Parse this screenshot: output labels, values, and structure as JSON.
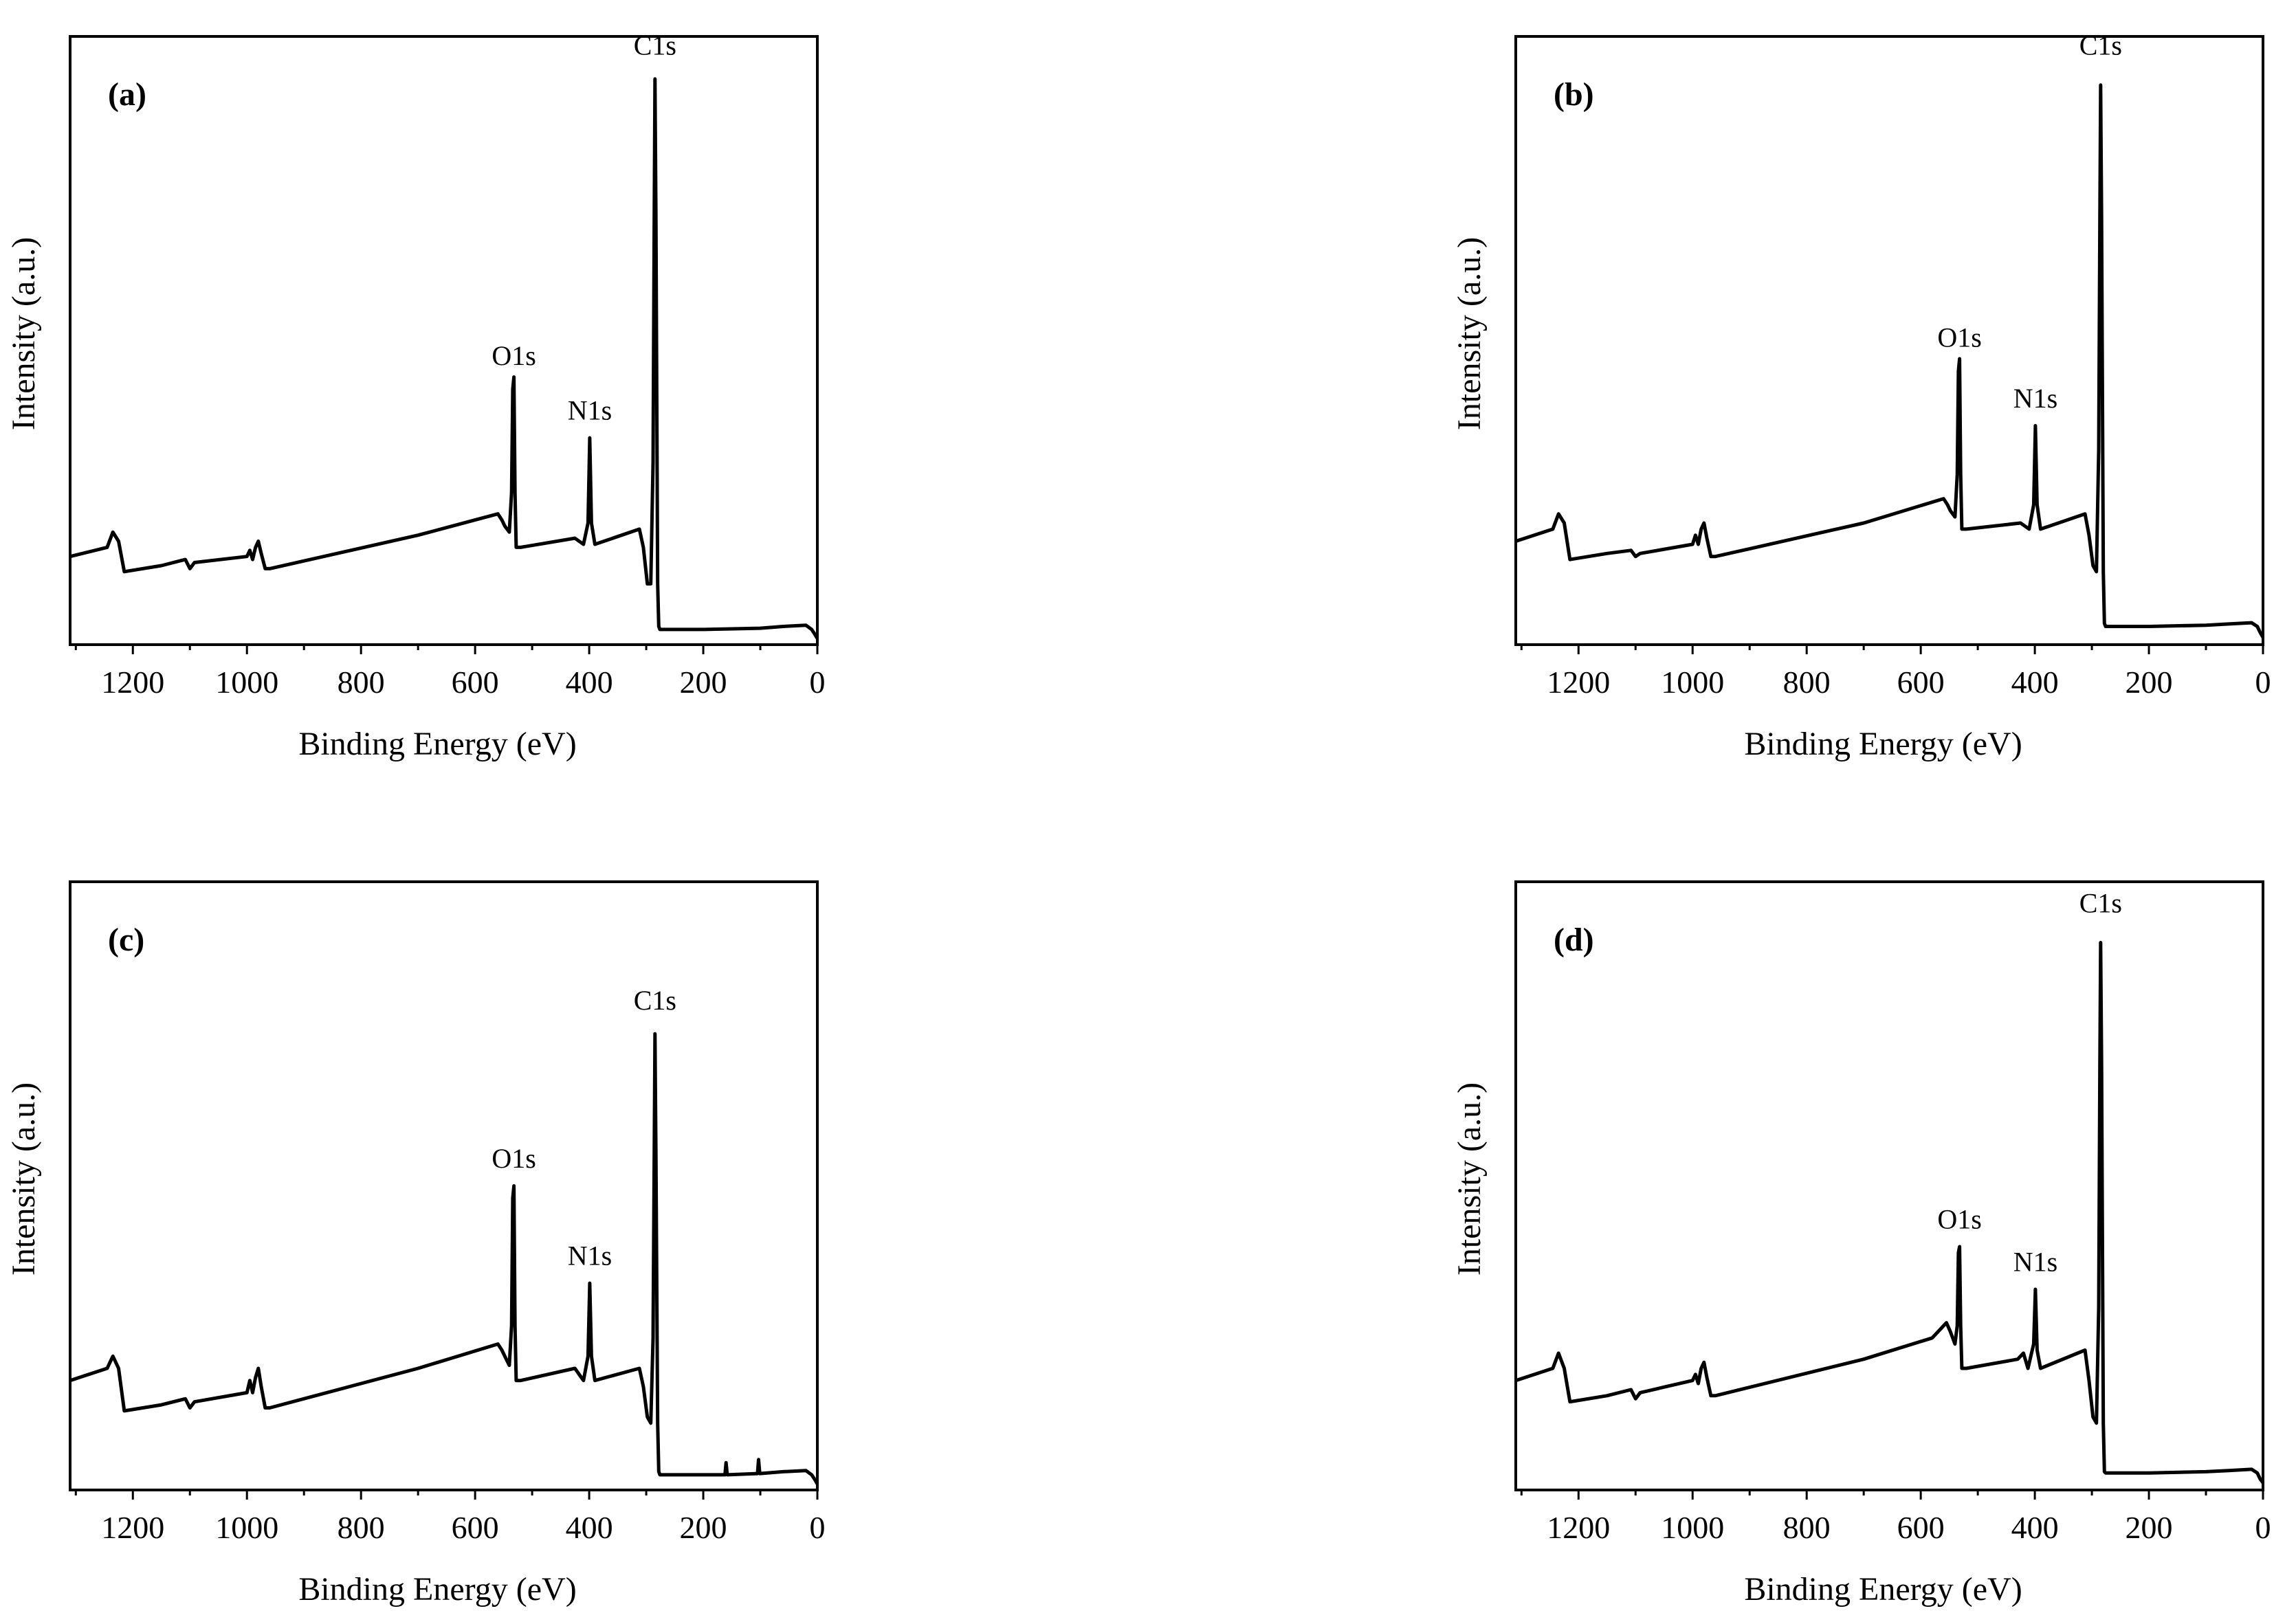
{
  "figure": {
    "description_free": true
  },
  "chart_data": [
    {
      "type": "line",
      "panel": "(a)",
      "xlabel": "Binding Energy (eV)",
      "ylabel": "Intensity (a.u.)",
      "xlim": [
        1310,
        0
      ],
      "ylim": [
        0,
        1
      ],
      "xticks": [
        1200,
        1000,
        800,
        600,
        400,
        200,
        0
      ],
      "annotations": [
        {
          "text": "C1s",
          "x": 284.6,
          "y": 0.97
        },
        {
          "text": "O1s",
          "x": 532,
          "y": 0.46
        },
        {
          "text": "N1s",
          "x": 399,
          "y": 0.37
        }
      ],
      "series": [
        {
          "name": "(a)",
          "x": [
            1310,
            1245,
            1235,
            1225,
            1215,
            1150,
            1108,
            1100,
            1092,
            1000,
            995,
            990,
            985,
            980,
            975,
            968,
            960,
            700,
            560,
            553,
            548,
            540,
            536,
            534,
            532,
            530,
            528,
            520,
            425,
            410,
            402,
            399,
            396,
            390,
            312,
            305,
            298,
            292,
            288,
            286,
            284.6,
            283,
            280,
            278,
            276,
            200,
            100,
            60,
            20,
            10,
            5,
            0
          ],
          "y": [
            0.145,
            0.16,
            0.185,
            0.17,
            0.12,
            0.13,
            0.14,
            0.125,
            0.135,
            0.145,
            0.155,
            0.14,
            0.16,
            0.17,
            0.15,
            0.125,
            0.125,
            0.18,
            0.215,
            0.205,
            0.195,
            0.185,
            0.25,
            0.42,
            0.44,
            0.25,
            0.16,
            0.16,
            0.175,
            0.165,
            0.2,
            0.34,
            0.2,
            0.165,
            0.19,
            0.16,
            0.1,
            0.1,
            0.3,
            0.7,
            0.93,
            0.7,
            0.1,
            0.03,
            0.025,
            0.025,
            0.027,
            0.03,
            0.032,
            0.025,
            0.018,
            0.01
          ]
        }
      ]
    },
    {
      "type": "line",
      "panel": "(b)",
      "xlabel": "Binding Energy (eV)",
      "ylabel": "Intensity (a.u.)",
      "xlim": [
        1310,
        0
      ],
      "ylim": [
        0,
        1
      ],
      "xticks": [
        1200,
        1000,
        800,
        600,
        400,
        200,
        0
      ],
      "annotations": [
        {
          "text": "C1s",
          "x": 284.6,
          "y": 0.97
        },
        {
          "text": "O1s",
          "x": 532,
          "y": 0.49
        },
        {
          "text": "N1s",
          "x": 399,
          "y": 0.39
        }
      ],
      "series": [
        {
          "name": "(b)",
          "x": [
            1310,
            1245,
            1235,
            1225,
            1215,
            1150,
            1108,
            1100,
            1092,
            1000,
            995,
            990,
            985,
            980,
            975,
            968,
            960,
            700,
            560,
            553,
            548,
            540,
            536,
            534,
            532,
            530,
            528,
            520,
            425,
            410,
            402,
            399,
            396,
            390,
            312,
            305,
            298,
            292,
            288,
            286,
            284.6,
            283,
            280,
            278,
            276,
            200,
            100,
            60,
            20,
            10,
            5,
            0
          ],
          "y": [
            0.17,
            0.19,
            0.215,
            0.2,
            0.14,
            0.15,
            0.155,
            0.145,
            0.15,
            0.165,
            0.18,
            0.165,
            0.19,
            0.2,
            0.175,
            0.145,
            0.145,
            0.2,
            0.24,
            0.23,
            0.22,
            0.21,
            0.28,
            0.45,
            0.47,
            0.28,
            0.19,
            0.19,
            0.2,
            0.19,
            0.23,
            0.36,
            0.23,
            0.19,
            0.215,
            0.18,
            0.13,
            0.12,
            0.32,
            0.7,
            0.92,
            0.7,
            0.12,
            0.035,
            0.03,
            0.03,
            0.032,
            0.034,
            0.036,
            0.03,
            0.02,
            0.012
          ]
        }
      ]
    },
    {
      "type": "line",
      "panel": "(c)",
      "xlabel": "Binding Energy (eV)",
      "ylabel": "Intensity (a.u.)",
      "xlim": [
        1310,
        0
      ],
      "ylim": [
        0,
        1
      ],
      "xticks": [
        1200,
        1000,
        800,
        600,
        400,
        200,
        0
      ],
      "annotations": [
        {
          "text": "C1s",
          "x": 284.6,
          "y": 0.79
        },
        {
          "text": "O1s",
          "x": 532,
          "y": 0.53
        },
        {
          "text": "N1s",
          "x": 399,
          "y": 0.37
        }
      ],
      "series": [
        {
          "name": "(c)",
          "x": [
            1310,
            1245,
            1235,
            1225,
            1215,
            1150,
            1108,
            1100,
            1092,
            1000,
            995,
            990,
            985,
            980,
            975,
            968,
            960,
            700,
            560,
            553,
            548,
            540,
            536,
            534,
            532,
            530,
            528,
            520,
            425,
            410,
            402,
            399,
            396,
            390,
            312,
            305,
            298,
            292,
            288,
            286,
            284.6,
            283,
            280,
            278,
            276,
            200,
            162,
            160,
            158,
            105,
            103,
            101,
            60,
            20,
            10,
            5,
            0
          ],
          "y": [
            0.18,
            0.2,
            0.22,
            0.2,
            0.13,
            0.14,
            0.15,
            0.135,
            0.145,
            0.16,
            0.18,
            0.16,
            0.185,
            0.2,
            0.17,
            0.135,
            0.135,
            0.2,
            0.24,
            0.23,
            0.22,
            0.205,
            0.27,
            0.48,
            0.5,
            0.27,
            0.18,
            0.18,
            0.2,
            0.18,
            0.22,
            0.34,
            0.22,
            0.18,
            0.2,
            0.17,
            0.12,
            0.11,
            0.25,
            0.55,
            0.75,
            0.55,
            0.11,
            0.03,
            0.025,
            0.025,
            0.025,
            0.045,
            0.025,
            0.027,
            0.05,
            0.027,
            0.03,
            0.032,
            0.025,
            0.018,
            0.01
          ]
        }
      ]
    },
    {
      "type": "line",
      "panel": "(d)",
      "xlabel": "Binding Energy (eV)",
      "ylabel": "Intensity (a.u.)",
      "xlim": [
        1310,
        0
      ],
      "ylim": [
        0,
        1
      ],
      "xticks": [
        1200,
        1000,
        800,
        600,
        400,
        200,
        0
      ],
      "annotations": [
        {
          "text": "C1s",
          "x": 284.6,
          "y": 0.95
        },
        {
          "text": "O1s",
          "x": 532,
          "y": 0.43
        },
        {
          "text": "N1s",
          "x": 399,
          "y": 0.36
        }
      ],
      "series": [
        {
          "name": "(d)",
          "x": [
            1310,
            1245,
            1235,
            1225,
            1215,
            1150,
            1108,
            1100,
            1092,
            1000,
            995,
            990,
            985,
            980,
            975,
            968,
            960,
            700,
            580,
            565,
            555,
            548,
            540,
            536,
            534,
            532,
            530,
            528,
            520,
            430,
            420,
            412,
            402,
            399,
            396,
            390,
            312,
            305,
            298,
            292,
            288,
            286,
            284.6,
            283,
            280,
            278,
            276,
            200,
            100,
            60,
            20,
            10,
            5,
            0
          ],
          "y": [
            0.18,
            0.2,
            0.225,
            0.2,
            0.145,
            0.155,
            0.165,
            0.15,
            0.16,
            0.18,
            0.19,
            0.175,
            0.2,
            0.21,
            0.185,
            0.155,
            0.155,
            0.215,
            0.25,
            0.265,
            0.275,
            0.26,
            0.24,
            0.27,
            0.39,
            0.4,
            0.27,
            0.2,
            0.2,
            0.215,
            0.225,
            0.2,
            0.24,
            0.33,
            0.23,
            0.2,
            0.23,
            0.18,
            0.12,
            0.11,
            0.3,
            0.7,
            0.9,
            0.7,
            0.11,
            0.03,
            0.028,
            0.028,
            0.03,
            0.032,
            0.034,
            0.028,
            0.018,
            0.012
          ]
        }
      ]
    }
  ]
}
